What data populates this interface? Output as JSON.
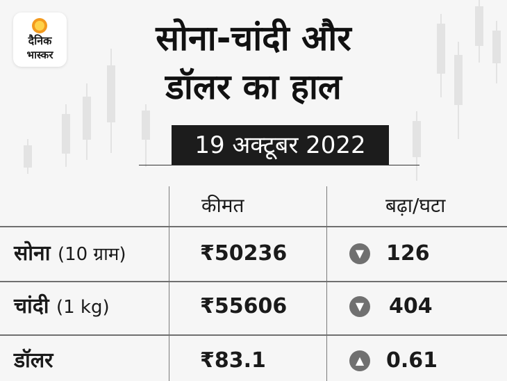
{
  "logo": {
    "line1": "दैनिक",
    "line2": "भास्कर"
  },
  "headline": {
    "line1": "सोना-चांदी और",
    "line2": "डॉलर का हाल"
  },
  "date": "19 अक्टूबर 2022",
  "table": {
    "headers": {
      "price": "कीमत",
      "change": "बढ़ा/घटा"
    },
    "rows": [
      {
        "label": "सोना",
        "unit": "(10 ग्राम)",
        "price": "₹50236",
        "direction": "down",
        "change": "126"
      },
      {
        "label": "चांदी",
        "unit": "(1 kg)",
        "price": "₹55606",
        "direction": "down",
        "change": "404"
      },
      {
        "label": "डॉलर",
        "unit": "",
        "price": "₹83.1",
        "direction": "up",
        "change": "0.61"
      }
    ]
  },
  "colors": {
    "text": "#1a1a1a",
    "badge": "#1c1c1c",
    "arrow": "#707070",
    "logo_sun": "#f39a1e"
  },
  "icons": {
    "down": "chevron-down-icon",
    "up": "chevron-up-icon"
  }
}
